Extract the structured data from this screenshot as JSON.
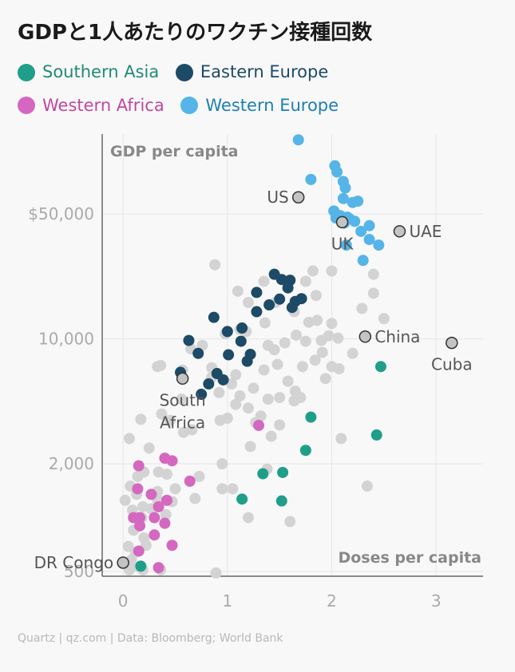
{
  "chart_data": {
    "type": "scatter",
    "title": "GDPと1人あたりのワクチン接種回数",
    "xlabel": "Doses per capita",
    "ylabel": "GDP per capita",
    "x_ticks": [
      0,
      1,
      2,
      3
    ],
    "y_ticks": [
      {
        "value": 500,
        "label": "500"
      },
      {
        "value": 2000,
        "label": "2,000"
      },
      {
        "value": 10000,
        "label": "10,000"
      },
      {
        "value": 50000,
        "label": "$50,000"
      }
    ],
    "xlim": [
      -0.2,
      3.45
    ],
    "ylim": [
      470,
      140000
    ],
    "y_scale": "log",
    "legend": [
      {
        "name": "Southern Asia",
        "color": "#1f9e89",
        "text_color": "#1f8a78"
      },
      {
        "name": "Eastern Europe",
        "color": "#1d4a66",
        "text_color": "#1d4a66"
      },
      {
        "name": "Western Africa",
        "color": "#d468c0",
        "text_color": "#c0479f"
      },
      {
        "name": "Western Europe",
        "color": "#55b4e8",
        "text_color": "#1d7fb0"
      }
    ],
    "other_color": "#d3d3d3",
    "annotations": [
      {
        "label": "US",
        "x": 1.68,
        "y": 62000,
        "pos": "left"
      },
      {
        "label": "UK",
        "x": 2.1,
        "y": 45000,
        "pos": "below"
      },
      {
        "label": "UAE",
        "x": 2.65,
        "y": 40000,
        "pos": "right"
      },
      {
        "label": "China",
        "x": 2.32,
        "y": 10300,
        "pos": "right"
      },
      {
        "label": "Cuba",
        "x": 3.15,
        "y": 9500,
        "pos": "below"
      },
      {
        "label": "South Africa",
        "x": 0.57,
        "y": 6000,
        "pos": "below"
      },
      {
        "label": "DR Congo",
        "x": 0.0,
        "y": 560,
        "pos": "left"
      }
    ],
    "series": [
      {
        "name": "Southern Asia",
        "points": [
          [
            1.8,
            3650
          ],
          [
            1.75,
            2380
          ],
          [
            2.47,
            7000
          ],
          [
            2.43,
            2900
          ],
          [
            1.34,
            1760
          ],
          [
            1.53,
            1790
          ],
          [
            1.14,
            1270
          ],
          [
            1.52,
            1240
          ],
          [
            0.17,
            535
          ]
        ]
      },
      {
        "name": "Eastern Europe",
        "points": [
          [
            1.45,
            23000
          ],
          [
            1.52,
            21500
          ],
          [
            1.6,
            21300
          ],
          [
            1.58,
            19300
          ],
          [
            1.28,
            18200
          ],
          [
            1.5,
            16700
          ],
          [
            1.4,
            15500
          ],
          [
            1.65,
            16200
          ],
          [
            1.28,
            14200
          ],
          [
            1.62,
            15000
          ],
          [
            1.71,
            16800
          ],
          [
            0.87,
            13200
          ],
          [
            1.14,
            11500
          ],
          [
            1.0,
            11000
          ],
          [
            0.63,
            9800
          ],
          [
            1.13,
            9700
          ],
          [
            0.55,
            6500
          ],
          [
            0.72,
            8300
          ],
          [
            1.01,
            8150
          ],
          [
            1.22,
            8200
          ],
          [
            1.19,
            7500
          ],
          [
            0.9,
            6400
          ],
          [
            0.96,
            5900
          ],
          [
            0.82,
            5600
          ],
          [
            0.75,
            4900
          ]
        ]
      },
      {
        "name": "Western Africa",
        "points": [
          [
            0.15,
            1950
          ],
          [
            0.4,
            2150
          ],
          [
            0.47,
            2080
          ],
          [
            0.64,
            1600
          ],
          [
            0.14,
            1450
          ],
          [
            0.27,
            1350
          ],
          [
            0.42,
            1250
          ],
          [
            0.34,
            1150
          ],
          [
            0.1,
            1000
          ],
          [
            0.16,
            1000
          ],
          [
            0.16,
            900
          ],
          [
            0.3,
            1000
          ],
          [
            0.4,
            930
          ],
          [
            0.3,
            800
          ],
          [
            0.47,
            700
          ],
          [
            0.15,
            650
          ],
          [
            0.34,
            525
          ],
          [
            1.3,
            3280
          ]
        ]
      },
      {
        "name": "Western Europe",
        "points": [
          [
            1.68,
            130000
          ],
          [
            2.03,
            93000
          ],
          [
            1.8,
            78000
          ],
          [
            2.05,
            86000
          ],
          [
            2.11,
            76000
          ],
          [
            2.13,
            70000
          ],
          [
            2.11,
            61000
          ],
          [
            2.2,
            58000
          ],
          [
            2.25,
            59000
          ],
          [
            2.02,
            52000
          ],
          [
            2.08,
            49000
          ],
          [
            2.15,
            48000
          ],
          [
            2.04,
            47500
          ],
          [
            2.17,
            47000
          ],
          [
            2.22,
            45500
          ],
          [
            2.12,
            44500
          ],
          [
            2.36,
            43000
          ],
          [
            2.28,
            40000
          ],
          [
            2.36,
            36000
          ],
          [
            2.45,
            33500
          ],
          [
            2.14,
            33500
          ],
          [
            2.3,
            27500
          ]
        ]
      },
      {
        "name": "Other",
        "points": [
          [
            0.88,
            26000
          ],
          [
            2.0,
            24000
          ],
          [
            2.4,
            23000
          ],
          [
            2.4,
            18000
          ],
          [
            1.1,
            18500
          ],
          [
            1.75,
            21000
          ],
          [
            1.82,
            24000
          ],
          [
            1.35,
            21000
          ],
          [
            1.2,
            16000
          ],
          [
            1.46,
            16000
          ],
          [
            1.64,
            14200
          ],
          [
            1.85,
            17500
          ],
          [
            2.29,
            14800
          ],
          [
            1.36,
            12300
          ],
          [
            1.78,
            12400
          ],
          [
            1.86,
            12700
          ],
          [
            2.0,
            12200
          ],
          [
            2.5,
            13000
          ],
          [
            1.12,
            11300
          ],
          [
            1.18,
            11000
          ],
          [
            0.98,
            10700
          ],
          [
            1.66,
            10500
          ],
          [
            1.97,
            10400
          ],
          [
            2.06,
            10100
          ],
          [
            1.75,
            9700
          ],
          [
            1.9,
            9800
          ],
          [
            1.55,
            9500
          ],
          [
            1.39,
            9200
          ],
          [
            0.76,
            9200
          ],
          [
            0.65,
            8800
          ],
          [
            1.45,
            8700
          ],
          [
            1.91,
            8400
          ],
          [
            2.2,
            8300
          ],
          [
            1.84,
            7600
          ],
          [
            1.48,
            7200
          ],
          [
            1.72,
            7000
          ],
          [
            2.0,
            7000
          ],
          [
            2.07,
            6800
          ],
          [
            0.33,
            7000
          ],
          [
            0.36,
            7100
          ],
          [
            0.57,
            6700
          ],
          [
            0.85,
            6900
          ],
          [
            1.35,
            6700
          ],
          [
            1.08,
            6300
          ],
          [
            1.94,
            6000
          ],
          [
            0.85,
            6100
          ],
          [
            1.04,
            5600
          ],
          [
            1.25,
            5300
          ],
          [
            1.58,
            5800
          ],
          [
            1.65,
            5100
          ],
          [
            0.92,
            5000
          ],
          [
            1.12,
            4800
          ],
          [
            1.39,
            4600
          ],
          [
            1.5,
            4700
          ],
          [
            1.64,
            4500
          ],
          [
            1.7,
            4700
          ],
          [
            0.56,
            4600
          ],
          [
            1.08,
            4300
          ],
          [
            1.2,
            4100
          ],
          [
            1.32,
            3700
          ],
          [
            1.0,
            3600
          ],
          [
            1.27,
            3400
          ],
          [
            1.5,
            3300
          ],
          [
            0.17,
            3550
          ],
          [
            0.45,
            3500
          ],
          [
            0.37,
            3800
          ],
          [
            0.93,
            3500
          ],
          [
            0.66,
            3100
          ],
          [
            0.58,
            3000
          ],
          [
            1.42,
            2850
          ],
          [
            2.09,
            2770
          ],
          [
            0.06,
            2770
          ],
          [
            1.22,
            2500
          ],
          [
            0.25,
            2450
          ],
          [
            0.95,
            2000
          ],
          [
            1.38,
            1870
          ],
          [
            0.34,
            1800
          ],
          [
            0.42,
            1750
          ],
          [
            0.2,
            1800
          ],
          [
            0.14,
            1700
          ],
          [
            0.73,
            1700
          ],
          [
            2.34,
            1500
          ],
          [
            0.07,
            1500
          ],
          [
            0.95,
            1450
          ],
          [
            1.05,
            1450
          ],
          [
            0.5,
            1450
          ],
          [
            0.13,
            1350
          ],
          [
            0.33,
            1400
          ],
          [
            0.69,
            1280
          ],
          [
            0.02,
            1250
          ],
          [
            0.33,
            1260
          ],
          [
            0.47,
            1230
          ],
          [
            0.19,
            1150
          ],
          [
            0.27,
            1120
          ],
          [
            0.09,
            1100
          ],
          [
            0.41,
            1040
          ],
          [
            1.2,
            1000
          ],
          [
            0.18,
            1000
          ],
          [
            1.6,
            950
          ],
          [
            0.1,
            850
          ],
          [
            0.2,
            770
          ],
          [
            0.22,
            700
          ],
          [
            0.05,
            690
          ],
          [
            0.12,
            640
          ],
          [
            0.08,
            580
          ],
          [
            0.15,
            530
          ],
          [
            0.06,
            510
          ],
          [
            0.19,
            510
          ],
          [
            0.89,
            490
          ],
          [
            0.36,
            510
          ],
          [
            0.0,
            560
          ]
        ]
      },
      {
        "name": "Highlighted",
        "points": [
          [
            1.68,
            62000
          ],
          [
            2.1,
            45000
          ],
          [
            2.65,
            40000
          ],
          [
            2.32,
            10300
          ],
          [
            3.15,
            9500
          ],
          [
            0.57,
            6000
          ],
          [
            0.0,
            560
          ]
        ]
      }
    ]
  },
  "footer": "Quartz | qz.com | Data: Bloomberg; World Bank"
}
